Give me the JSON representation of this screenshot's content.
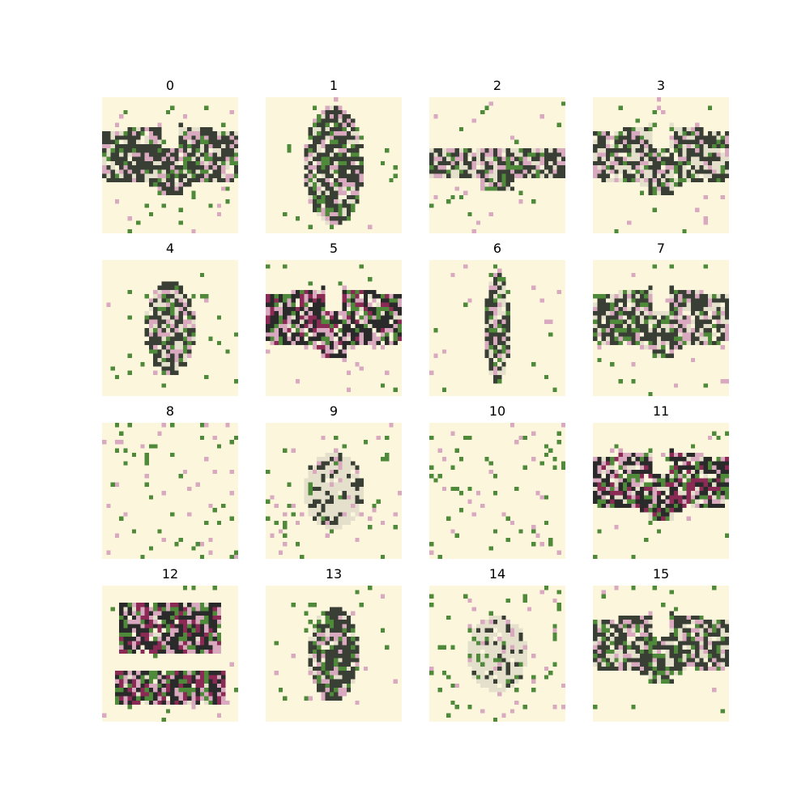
{
  "figure": {
    "background": "#ffffff",
    "tile_background": "#fbf6dc",
    "palette": {
      "dark": "#3a3f35",
      "green": "#4f8a3a",
      "magenta": "#8a2a55",
      "pink": "#d9a9bf",
      "cream": "#f8f1cf"
    },
    "panels": [
      {
        "label": "0",
        "subject": "butterfly",
        "strength": 0.85
      },
      {
        "label": "1",
        "subject": "beetle-wide",
        "strength": 0.9
      },
      {
        "label": "2",
        "subject": "moth-thin",
        "strength": 0.8
      },
      {
        "label": "3",
        "subject": "butterfly",
        "strength": 0.8
      },
      {
        "label": "4",
        "subject": "beetle",
        "strength": 0.85
      },
      {
        "label": "5",
        "subject": "butterfly-dark",
        "strength": 1.0
      },
      {
        "label": "6",
        "subject": "beetle-thin",
        "strength": 0.8
      },
      {
        "label": "7",
        "subject": "butterfly",
        "strength": 0.85
      },
      {
        "label": "8",
        "subject": "faint",
        "strength": 0.25
      },
      {
        "label": "9",
        "subject": "faint-center",
        "strength": 0.35
      },
      {
        "label": "10",
        "subject": "faint",
        "strength": 0.3
      },
      {
        "label": "11",
        "subject": "butterfly-dark",
        "strength": 0.95
      },
      {
        "label": "12",
        "subject": "blob",
        "strength": 1.0
      },
      {
        "label": "13",
        "subject": "beetle",
        "strength": 0.9
      },
      {
        "label": "14",
        "subject": "faint-center",
        "strength": 0.35
      },
      {
        "label": "15",
        "subject": "butterfly",
        "strength": 0.85
      }
    ]
  }
}
